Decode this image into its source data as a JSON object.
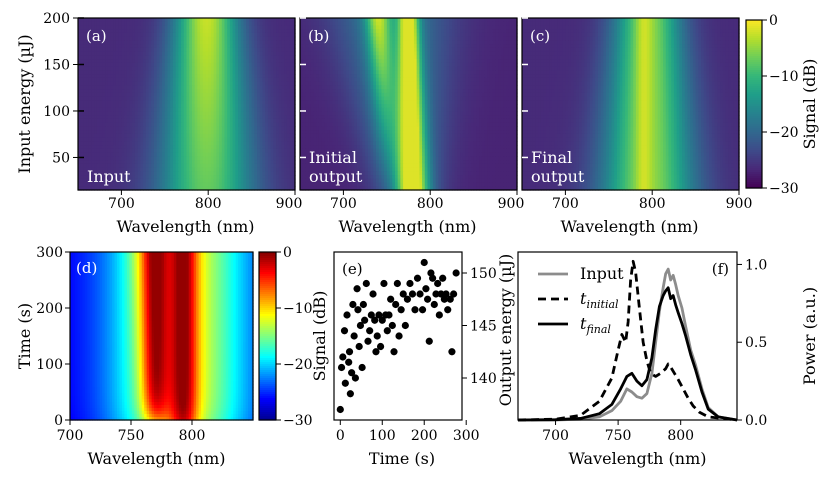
{
  "chart_data": [
    {
      "id": "a",
      "type": "heatmap",
      "panel_label": "(a)",
      "annotation": [
        "Input"
      ],
      "xlabel": "Wavelength (nm)",
      "ylabel": "Input energy (µJ)",
      "xlim": [
        650,
        900
      ],
      "ylim": [
        15,
        200
      ],
      "xticks": [
        "700",
        "800",
        "900"
      ],
      "yticks": [
        "50",
        "100",
        "150",
        "200"
      ],
      "peak_center_nm": 798,
      "width_nm_at_200uJ": 30,
      "width_nm_at_20uJ": 45
    },
    {
      "id": "b",
      "type": "heatmap",
      "panel_label": "(b)",
      "annotation": [
        "Initial",
        "output"
      ],
      "xlabel": "Wavelength (nm)",
      "xlim": [
        650,
        900
      ],
      "ylim": [
        15,
        200
      ],
      "xticks": [
        "700",
        "800",
        "900"
      ],
      "main_peak_nm": 775,
      "side_peak_nm": 745
    },
    {
      "id": "c",
      "type": "heatmap",
      "panel_label": "(c)",
      "annotation": [
        "Final",
        "output"
      ],
      "xlabel": "Wavelength (nm)",
      "xlim": [
        650,
        900
      ],
      "ylim": [
        15,
        200
      ],
      "xticks": [
        "700",
        "800",
        "900"
      ],
      "peak_center_nm": 795
    },
    {
      "id": "colorbar-top",
      "type": "colorbar",
      "colormap": "viridis",
      "label": "Signal (dB)",
      "range": [
        -30,
        0
      ],
      "ticks": [
        "0",
        "−10",
        "−20",
        "−30"
      ]
    },
    {
      "id": "d",
      "type": "heatmap",
      "panel_label": "(d)",
      "xlabel": "Wavelength (nm)",
      "ylabel": "Time (s)",
      "xlim": [
        700,
        850
      ],
      "ylim": [
        0,
        300
      ],
      "xticks": [
        "700",
        "750",
        "800"
      ],
      "yticks": [
        "0",
        "100",
        "200",
        "300"
      ],
      "peak1_nm": 770,
      "peak2_nm": 793
    },
    {
      "id": "colorbar-bottom",
      "type": "colorbar",
      "colormap": "jet",
      "range": [
        -30,
        0
      ],
      "ticks": [
        "0",
        "−10",
        "−20",
        "−30"
      ]
    },
    {
      "id": "e",
      "type": "scatter",
      "panel_label": "(e)",
      "xlabel": "Time (s)",
      "ylabel_left": "Signal (dB)",
      "ylabel_right": "Output energy (µJ)",
      "xlim": [
        -15,
        290
      ],
      "ylim": [
        136,
        152
      ],
      "xticks": [
        "0",
        "100",
        "200",
        "300"
      ],
      "yticks_right": [
        "140",
        "145",
        "150"
      ],
      "points": [
        [
          0,
          137
        ],
        [
          3,
          141
        ],
        [
          6,
          142
        ],
        [
          10,
          144.5
        ],
        [
          12,
          139.5
        ],
        [
          16,
          146
        ],
        [
          20,
          141.5
        ],
        [
          22,
          142.5
        ],
        [
          24,
          138.5
        ],
        [
          27,
          140.5
        ],
        [
          30,
          147
        ],
        [
          33,
          144
        ],
        [
          36,
          140
        ],
        [
          40,
          148.5
        ],
        [
          42,
          146.5
        ],
        [
          45,
          143
        ],
        [
          48,
          145
        ],
        [
          52,
          141
        ],
        [
          55,
          147
        ],
        [
          58,
          145.5
        ],
        [
          62,
          149
        ],
        [
          66,
          143.5
        ],
        [
          70,
          144.5
        ],
        [
          74,
          146
        ],
        [
          78,
          148
        ],
        [
          82,
          145.5
        ],
        [
          85,
          142.5
        ],
        [
          88,
          144
        ],
        [
          92,
          146
        ],
        [
          96,
          143
        ],
        [
          100,
          145.5
        ],
        [
          104,
          149
        ],
        [
          108,
          146
        ],
        [
          112,
          144.5
        ],
        [
          116,
          146
        ],
        [
          120,
          147.5
        ],
        [
          124,
          145
        ],
        [
          128,
          142.5
        ],
        [
          132,
          147
        ],
        [
          136,
          149
        ],
        [
          140,
          144
        ],
        [
          145,
          146.5
        ],
        [
          150,
          148
        ],
        [
          155,
          145
        ],
        [
          160,
          147.5
        ],
        [
          166,
          149
        ],
        [
          172,
          148
        ],
        [
          178,
          146.5
        ],
        [
          184,
          149.5
        ],
        [
          190,
          148
        ],
        [
          196,
          146.5
        ],
        [
          200,
          151
        ],
        [
          204,
          148.5
        ],
        [
          208,
          147.5
        ],
        [
          212,
          143.5
        ],
        [
          216,
          150
        ],
        [
          220,
          149.5
        ],
        [
          224,
          147
        ],
        [
          228,
          148
        ],
        [
          232,
          149
        ],
        [
          236,
          146
        ],
        [
          240,
          148
        ],
        [
          244,
          149.5
        ],
        [
          248,
          147.5
        ],
        [
          252,
          148
        ],
        [
          256,
          146.5
        ],
        [
          262,
          147.5
        ],
        [
          266,
          142.5
        ],
        [
          270,
          148
        ],
        [
          276,
          150
        ]
      ]
    },
    {
      "id": "f",
      "type": "line",
      "panel_label": "(f)",
      "xlabel": "Wavelength (nm)",
      "ylabel": "Power (a.u.)",
      "xlim": [
        670,
        845
      ],
      "ylim": [
        0,
        1.08
      ],
      "xticks": [
        "700",
        "750",
        "800"
      ],
      "yticks": [
        "0.0",
        "0.5",
        "1.0"
      ],
      "series": [
        {
          "name": "Input",
          "legend_main": "Input",
          "legend_sub": "",
          "color": "#8c8c8c",
          "dash": "",
          "x": [
            670,
            700,
            720,
            735,
            745,
            752,
            757,
            761,
            765,
            769,
            773,
            777,
            780,
            783,
            786,
            788,
            790,
            792,
            794,
            796,
            798,
            801,
            804,
            808,
            812,
            817,
            822,
            830,
            845
          ],
          "y": [
            0,
            0,
            0.005,
            0.02,
            0.06,
            0.12,
            0.2,
            0.18,
            0.15,
            0.14,
            0.17,
            0.3,
            0.5,
            0.7,
            0.85,
            0.94,
            0.97,
            0.9,
            0.93,
            0.87,
            0.8,
            0.72,
            0.6,
            0.45,
            0.35,
            0.2,
            0.08,
            0.02,
            0
          ]
        },
        {
          "name": "t initial",
          "legend_main": "t",
          "legend_sub": "initial",
          "color": "#000000",
          "dash": "8,5",
          "x": [
            670,
            700,
            720,
            735,
            745,
            750,
            753,
            756,
            758,
            760,
            762,
            764,
            767,
            770,
            773,
            776,
            780,
            784,
            788,
            790,
            792,
            795,
            798,
            802,
            806,
            810,
            815,
            822,
            845
          ],
          "y": [
            0,
            0.005,
            0.03,
            0.12,
            0.27,
            0.45,
            0.55,
            0.5,
            0.63,
            0.9,
            1.02,
            0.95,
            0.72,
            0.5,
            0.38,
            0.3,
            0.28,
            0.3,
            0.33,
            0.36,
            0.34,
            0.3,
            0.26,
            0.2,
            0.14,
            0.09,
            0.05,
            0.02,
            0
          ]
        },
        {
          "name": "t final",
          "legend_main": "t",
          "legend_sub": "final",
          "color": "#000000",
          "dash": "",
          "x": [
            670,
            700,
            720,
            735,
            745,
            752,
            757,
            761,
            765,
            769,
            773,
            777,
            780,
            783,
            786,
            788,
            790,
            792,
            794,
            796,
            798,
            801,
            804,
            808,
            812,
            817,
            822,
            830,
            845
          ],
          "y": [
            0,
            0.002,
            0.01,
            0.04,
            0.1,
            0.2,
            0.28,
            0.3,
            0.25,
            0.22,
            0.26,
            0.4,
            0.58,
            0.73,
            0.8,
            0.83,
            0.85,
            0.78,
            0.8,
            0.74,
            0.69,
            0.62,
            0.54,
            0.42,
            0.32,
            0.18,
            0.07,
            0.02,
            0
          ]
        }
      ]
    }
  ]
}
